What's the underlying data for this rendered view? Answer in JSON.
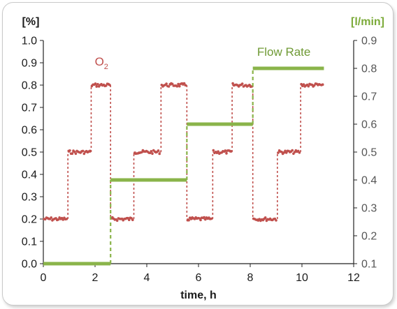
{
  "chart_data": {
    "type": "line",
    "xlabel": "time, h",
    "ylabel_left": "[%]",
    "ylabel_right": "[l/min]",
    "xlim": [
      0,
      12
    ],
    "ylim_left": [
      0.0,
      1.0
    ],
    "ylim_right": [
      0.1,
      0.9
    ],
    "x_ticks": [
      "0",
      "2",
      "4",
      "6",
      "8",
      "10",
      "12"
    ],
    "y_left_ticks": [
      "0.0",
      "0.1",
      "0.2",
      "0.3",
      "0.4",
      "0.5",
      "0.6",
      "0.7",
      "0.8",
      "0.9",
      "1.0"
    ],
    "y_right_ticks": [
      "0.1",
      "0.2",
      "0.3",
      "0.4",
      "0.5",
      "0.6",
      "0.7",
      "0.8",
      "0.9"
    ],
    "grid": false,
    "colors": {
      "o2": "#c0504d",
      "flow": "#8ab44a"
    },
    "series": [
      {
        "name": "O2",
        "axis": "left",
        "label_main": "O",
        "label_sub": "2",
        "segments": [
          {
            "x": [
              0.0,
              0.95
            ],
            "y": 0.2
          },
          {
            "x": [
              0.95,
              1.85
            ],
            "y": 0.5
          },
          {
            "x": [
              1.85,
              2.6
            ],
            "y": 0.8
          },
          {
            "x": [
              2.6,
              3.5
            ],
            "y": 0.2
          },
          {
            "x": [
              3.5,
              4.55
            ],
            "y": 0.5
          },
          {
            "x": [
              4.55,
              5.55
            ],
            "y": 0.8
          },
          {
            "x": [
              5.55,
              6.55
            ],
            "y": 0.2
          },
          {
            "x": [
              6.55,
              7.3
            ],
            "y": 0.5
          },
          {
            "x": [
              7.3,
              8.1
            ],
            "y": 0.8
          },
          {
            "x": [
              8.1,
              9.05
            ],
            "y": 0.2
          },
          {
            "x": [
              9.05,
              9.95
            ],
            "y": 0.5
          },
          {
            "x": [
              9.95,
              10.85
            ],
            "y": 0.8
          }
        ]
      },
      {
        "name": "Flow Rate",
        "axis": "right",
        "segments": [
          {
            "x": [
              0.0,
              2.6
            ],
            "y": 0.1
          },
          {
            "x": [
              2.6,
              5.55
            ],
            "y": 0.4
          },
          {
            "x": [
              5.55,
              8.1
            ],
            "y": 0.6
          },
          {
            "x": [
              8.1,
              10.85
            ],
            "y": 0.8
          }
        ]
      }
    ]
  }
}
